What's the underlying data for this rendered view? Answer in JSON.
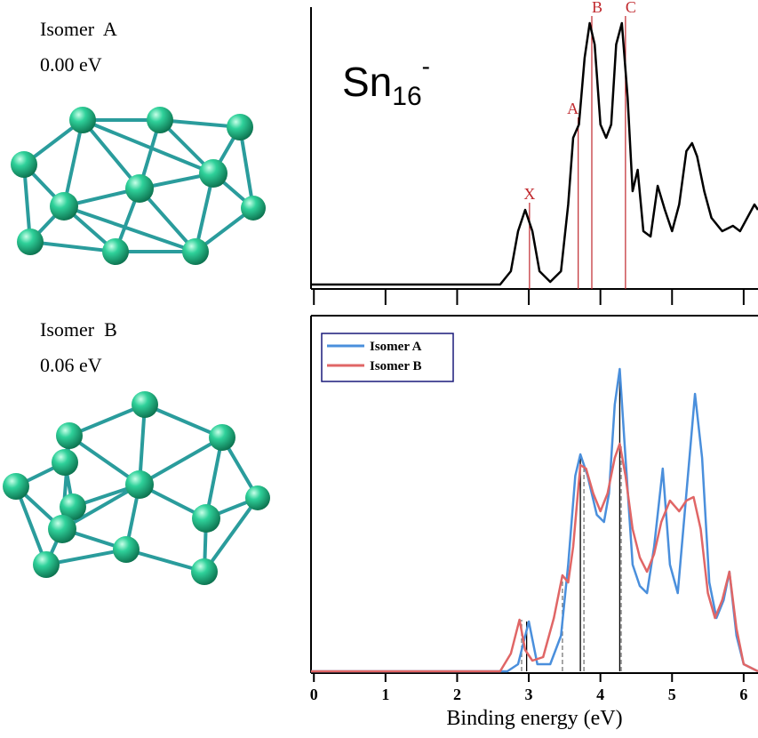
{
  "structures": [
    {
      "name": "Isomer  A",
      "energy": "0.00 eV"
    },
    {
      "name": "Isomer  B",
      "energy": "0.06 eV"
    }
  ],
  "chart_data": [
    {
      "type": "line",
      "title": {
        "base": "Sn",
        "sub": "16",
        "sup": "-"
      },
      "xlim": [
        -0.04,
        6.2
      ],
      "ylim": [
        0,
        1
      ],
      "xticks": [
        0,
        1,
        2,
        3,
        4,
        5,
        6
      ],
      "series": [
        {
          "color": "#000000",
          "x": [
            -0.04,
            2.6,
            2.75,
            2.85,
            2.95,
            3.05,
            3.15,
            3.3,
            3.45,
            3.55,
            3.62,
            3.7,
            3.78,
            3.85,
            3.92,
            4.0,
            4.08,
            4.15,
            4.22,
            4.3,
            4.38,
            4.45,
            4.52,
            4.6,
            4.7,
            4.8,
            4.9,
            5.0,
            5.1,
            5.2,
            5.28,
            5.35,
            5.45,
            5.55,
            5.7,
            5.85,
            5.95,
            6.05,
            6.15,
            6.2
          ],
          "values": [
            0.0,
            0.0,
            0.05,
            0.2,
            0.28,
            0.2,
            0.05,
            0.01,
            0.05,
            0.3,
            0.55,
            0.6,
            0.85,
            0.98,
            0.9,
            0.6,
            0.55,
            0.6,
            0.9,
            0.98,
            0.7,
            0.35,
            0.43,
            0.2,
            0.18,
            0.37,
            0.28,
            0.2,
            0.3,
            0.5,
            0.53,
            0.48,
            0.35,
            0.25,
            0.2,
            0.22,
            0.2,
            0.25,
            0.3,
            0.28
          ]
        }
      ],
      "annotations": [
        {
          "text": "X",
          "x": 3.01,
          "y": 0.28,
          "color": "#c0282d"
        },
        {
          "text": "A",
          "x": 3.69,
          "y": 0.6,
          "color": "#c0282d"
        },
        {
          "text": "B",
          "x": 3.88,
          "y": 0.98,
          "color": "#c0282d"
        },
        {
          "text": "C",
          "x": 4.35,
          "y": 0.98,
          "color": "#c0282d"
        }
      ]
    },
    {
      "type": "line",
      "xlabel": "Binding energy (eV)",
      "xlim": [
        -0.04,
        6.2
      ],
      "ylim": [
        0,
        1
      ],
      "xticks": [
        0,
        1,
        2,
        3,
        4,
        5,
        6
      ],
      "legend": "upper left",
      "series": [
        {
          "name": "Isomer A",
          "color": "#4a8fdc",
          "x": [
            -0.04,
            2.7,
            2.85,
            3.0,
            3.12,
            3.3,
            3.45,
            3.55,
            3.65,
            3.72,
            3.82,
            3.95,
            4.05,
            4.12,
            4.2,
            4.27,
            4.35,
            4.45,
            4.55,
            4.65,
            4.75,
            4.87,
            4.97,
            5.08,
            5.2,
            5.32,
            5.42,
            5.52,
            5.62,
            5.72,
            5.8,
            5.9,
            6.0,
            6.2
          ],
          "values": [
            0,
            0,
            0.02,
            0.14,
            0.02,
            0.02,
            0.1,
            0.3,
            0.55,
            0.61,
            0.55,
            0.44,
            0.42,
            0.5,
            0.75,
            0.85,
            0.6,
            0.3,
            0.24,
            0.22,
            0.35,
            0.57,
            0.3,
            0.22,
            0.5,
            0.78,
            0.6,
            0.25,
            0.15,
            0.2,
            0.28,
            0.1,
            0.02,
            0
          ],
          "sticks": {
            "x": [
              2.97,
              3.72,
              4.27
            ],
            "heights": [
              0.14,
              0.61,
              0.85
            ],
            "color": "#000000",
            "dash": false
          }
        },
        {
          "name": "Isomer B",
          "color": "#e06666",
          "x": [
            -0.04,
            2.6,
            2.75,
            2.87,
            2.95,
            3.05,
            3.2,
            3.35,
            3.47,
            3.55,
            3.62,
            3.72,
            3.8,
            3.9,
            4.0,
            4.1,
            4.2,
            4.27,
            4.35,
            4.45,
            4.55,
            4.65,
            4.75,
            4.85,
            4.97,
            5.1,
            5.2,
            5.3,
            5.4,
            5.5,
            5.6,
            5.7,
            5.8,
            5.9,
            6.0,
            6.2
          ],
          "values": [
            0,
            0,
            0.05,
            0.145,
            0.06,
            0.03,
            0.04,
            0.15,
            0.27,
            0.25,
            0.35,
            0.58,
            0.57,
            0.5,
            0.45,
            0.5,
            0.6,
            0.64,
            0.55,
            0.4,
            0.32,
            0.28,
            0.33,
            0.42,
            0.48,
            0.45,
            0.48,
            0.49,
            0.4,
            0.22,
            0.15,
            0.2,
            0.28,
            0.12,
            0.02,
            0
          ],
          "sticks": {
            "x": [
              2.9,
              3.47,
              3.77,
              4.29
            ],
            "heights": [
              0.145,
              0.27,
              0.58,
              0.64
            ],
            "color": "#777777",
            "dash": true
          }
        }
      ]
    }
  ]
}
